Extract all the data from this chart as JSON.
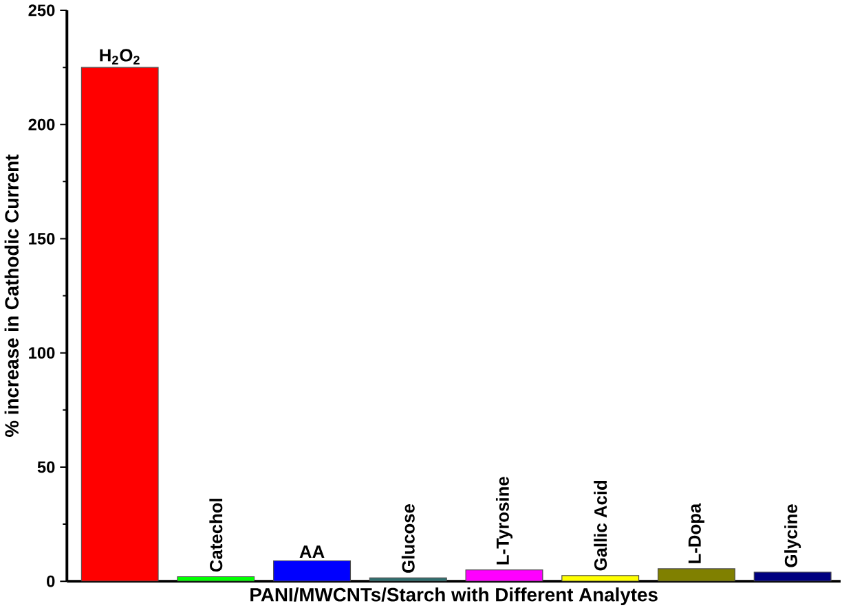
{
  "chart_data": {
    "type": "bar",
    "xlabel": "PANI/MWCNTs/Starch with Different Analytes",
    "ylabel": "% increase in Cathodic Current",
    "categories": [
      "H$_{2}$O$_{2}$",
      "Catechol",
      "AA",
      "Glucose",
      "L-Tyrosine",
      "Gallic Acid",
      "L-Dopa",
      "Glycine"
    ],
    "values": [
      225,
      2,
      9,
      1.5,
      5,
      2.5,
      5.5,
      4
    ],
    "colors": [
      "#ff0000",
      "#00ff00",
      "#0000ff",
      "#2f6f6f",
      "#ff00ff",
      "#ffff00",
      "#808000",
      "#000080"
    ],
    "ylim": [
      0,
      250
    ],
    "yticks": [
      0,
      50,
      100,
      150,
      200,
      250
    ]
  }
}
